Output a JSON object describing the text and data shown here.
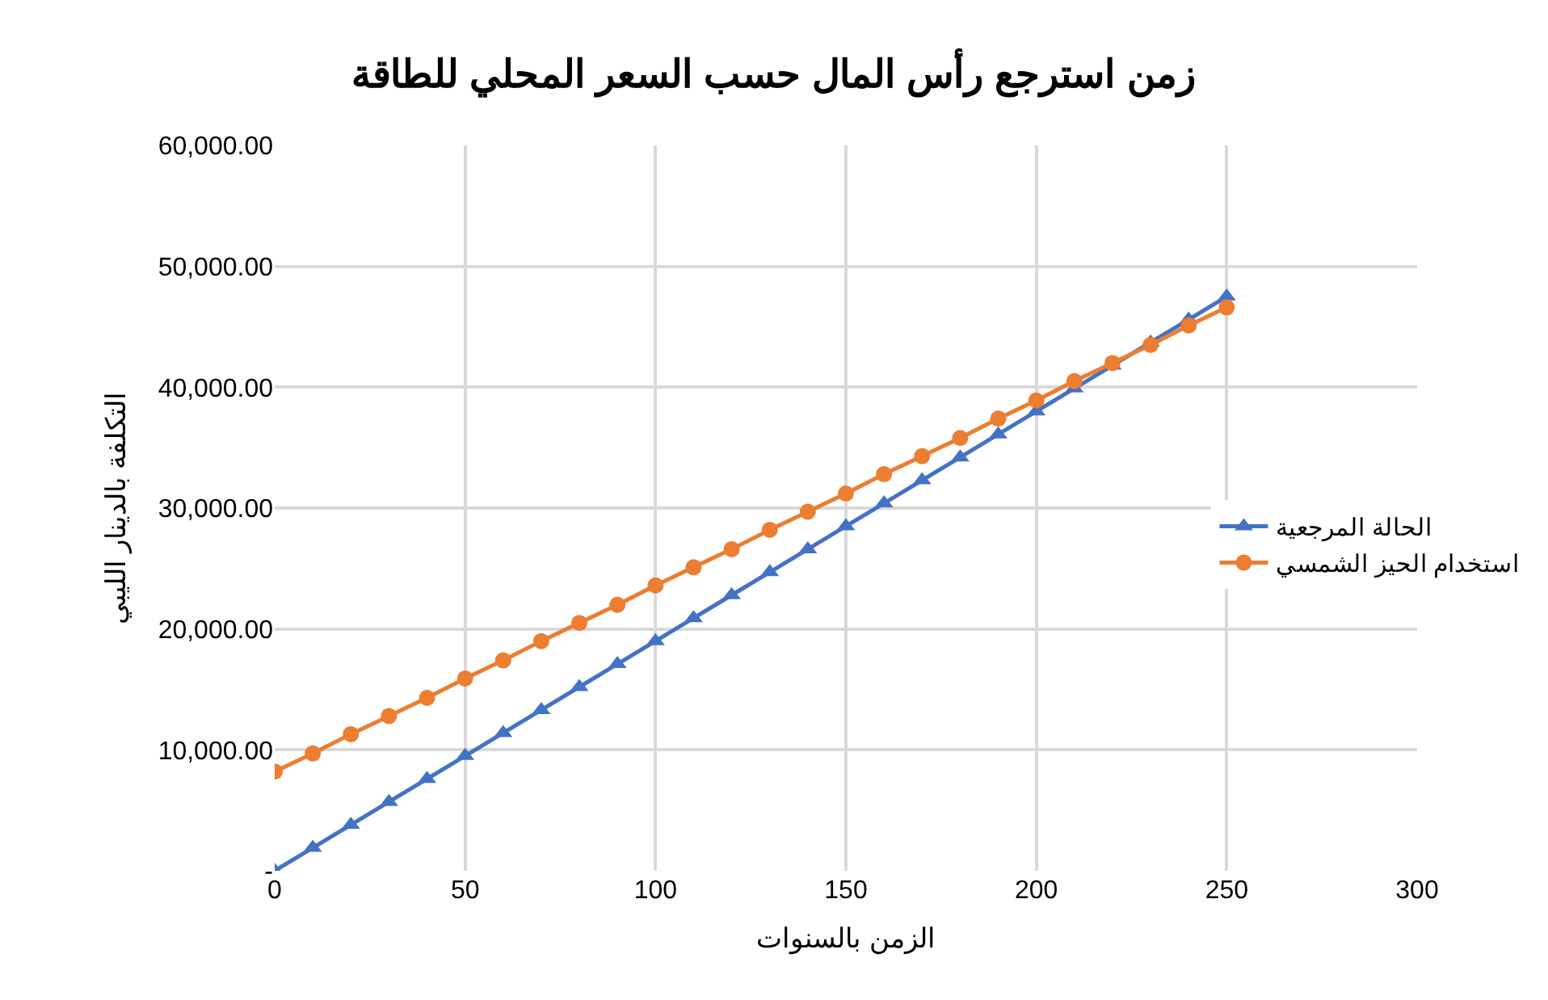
{
  "chart_data": {
    "type": "line",
    "title": "زمن استرجع رأس المال حسب السعر المحلي للطاقة",
    "xlabel": "الزمن بالسنوات",
    "ylabel": "التكلفة بالدينار الليبي",
    "x": [
      0,
      10,
      20,
      30,
      40,
      50,
      60,
      70,
      80,
      90,
      100,
      110,
      120,
      130,
      140,
      150,
      160,
      170,
      180,
      190,
      200,
      210,
      220,
      230,
      240,
      250
    ],
    "series": [
      {
        "name": "الحالة المرجعية",
        "color": "#4472c4",
        "marker": "triangle",
        "values": [
          0,
          1900,
          3800,
          5700,
          7600,
          9500,
          11400,
          13300,
          15200,
          17100,
          19000,
          20900,
          22800,
          24700,
          26600,
          28500,
          30400,
          32300,
          34200,
          36100,
          38000,
          39900,
          41800,
          43700,
          45600,
          47500
        ]
      },
      {
        "name": "استخدام الحيز الشمسي",
        "color": "#ed7d31",
        "marker": "circle",
        "values": [
          8200,
          9700,
          11300,
          12800,
          14300,
          15900,
          17400,
          19000,
          20500,
          22000,
          23600,
          25100,
          26600,
          28200,
          29700,
          31200,
          32800,
          34300,
          35800,
          37400,
          38900,
          40500,
          42000,
          43500,
          45100,
          46600
        ]
      }
    ],
    "xlim": [
      0,
      300
    ],
    "xticks": [
      0,
      50,
      100,
      150,
      200,
      250,
      300
    ],
    "ylim": [
      0,
      60000
    ],
    "yticks": [
      {
        "value": 0,
        "label": "-"
      },
      {
        "value": 10000,
        "label": "10,000.00"
      },
      {
        "value": 20000,
        "label": "20,000.00"
      },
      {
        "value": 30000,
        "label": "30,000.00"
      },
      {
        "value": 40000,
        "label": "40,000.00"
      },
      {
        "value": 50000,
        "label": "50,000.00"
      },
      {
        "value": 60000,
        "label": "60,000.00"
      }
    ],
    "grid": true,
    "legend": "right",
    "line_style": "solid"
  }
}
